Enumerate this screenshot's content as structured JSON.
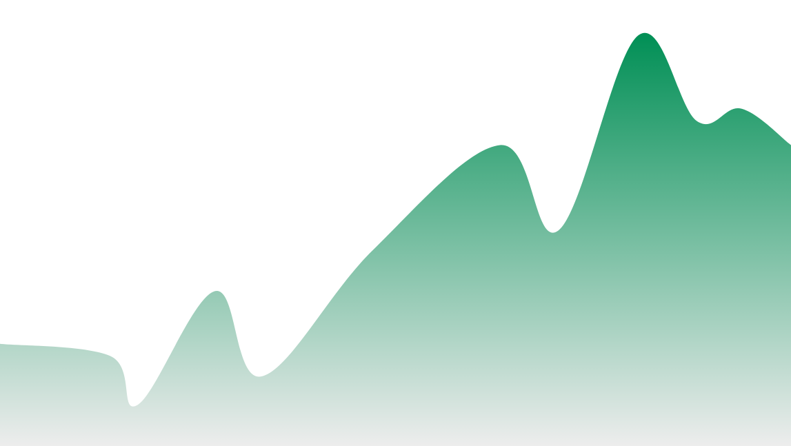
{
  "chart_data": {
    "type": "area",
    "title": "",
    "xlabel": "",
    "ylabel": "",
    "grid": false,
    "legend": "none",
    "x": [
      0,
      1,
      2,
      3,
      4,
      5,
      6,
      7,
      8,
      9,
      10,
      11
    ],
    "ylim": [
      0,
      100
    ],
    "series": [
      {
        "values": [
          24,
          21,
          9,
          37,
          16,
          47,
          73,
          52,
          100,
          79,
          82,
          73
        ]
      }
    ],
    "colors": {
      "top": "#008f55",
      "bottom": "#ededed"
    }
  }
}
